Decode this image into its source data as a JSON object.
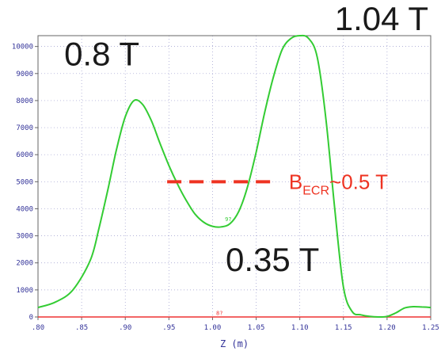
{
  "chart_data": {
    "type": "line",
    "xlabel": "Z (m)",
    "ylabel": "",
    "xlim": [
      0.8,
      1.25
    ],
    "ylim": [
      0,
      10400
    ],
    "grid": true,
    "x_ticks": [
      0.8,
      0.85,
      0.9,
      0.95,
      1.0,
      1.05,
      1.1,
      1.15,
      1.2,
      1.25
    ],
    "x_tick_labels": [
      ".80",
      ".85",
      ".90",
      ".95",
      "1.00",
      "1.05",
      "1.10",
      "1.15",
      "1.20",
      "1.25"
    ],
    "y_ticks": [
      0,
      1000,
      2000,
      3000,
      4000,
      5000,
      6000,
      7000,
      8000,
      9000,
      10000
    ],
    "y_tick_labels": [
      "0",
      "1000",
      "2000",
      "3000",
      "4000",
      "5000",
      "6000",
      "7000",
      "8000",
      "9000",
      "10000"
    ],
    "series": [
      {
        "color": "#33cc33",
        "x": [
          0.8,
          0.82,
          0.84,
          0.86,
          0.87,
          0.88,
          0.89,
          0.9,
          0.91,
          0.92,
          0.93,
          0.94,
          0.95,
          0.96,
          0.97,
          0.98,
          0.99,
          1.0,
          1.01,
          1.02,
          1.03,
          1.04,
          1.05,
          1.06,
          1.07,
          1.08,
          1.09,
          1.1,
          1.11,
          1.12,
          1.13,
          1.14,
          1.15,
          1.16,
          1.17,
          1.18,
          1.19,
          1.2,
          1.21,
          1.22,
          1.23,
          1.24,
          1.25
        ],
        "y": [
          350,
          550,
          1000,
          2100,
          3300,
          4700,
          6200,
          7400,
          8000,
          7850,
          7250,
          6400,
          5600,
          4900,
          4300,
          3800,
          3500,
          3350,
          3330,
          3450,
          3900,
          4800,
          6100,
          7600,
          8900,
          9900,
          10300,
          10400,
          10300,
          9600,
          7300,
          4000,
          1100,
          200,
          80,
          20,
          0,
          20,
          150,
          330,
          380,
          370,
          350
        ]
      }
    ],
    "baseline": {
      "color": "#ee3333",
      "y": 0
    },
    "annotations": [
      {
        "text": "0.8 T",
        "x": 0.83,
        "y": 9300
      },
      {
        "text": "1.04 T",
        "x": 1.14,
        "y": 10600
      },
      {
        "text": "0.35 T",
        "x": 1.015,
        "y": 1700
      }
    ],
    "ecr_line": {
      "y": 5000,
      "x_start": 0.948,
      "x_end": 1.073,
      "color": "#ee3322",
      "label_main": "B",
      "label_sub": "ECR",
      "label_tail": "~0.5 T"
    },
    "small_marks": [
      {
        "text": "9?",
        "x": 1.018,
        "y": 3550,
        "color": "#33cc33"
      },
      {
        "text": "8?",
        "x": 1.008,
        "y": 80,
        "color": "#ee3333"
      }
    ]
  }
}
